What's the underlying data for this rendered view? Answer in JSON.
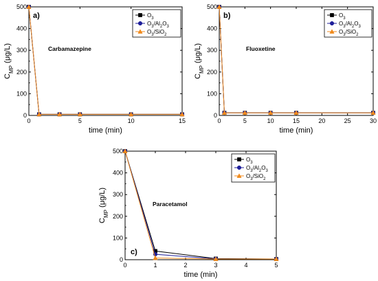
{
  "chart_data": [
    {
      "type": "line",
      "panel_label": "a)",
      "compound": "Carbamazepine",
      "xlabel": "time (min)",
      "ylabel": "C",
      "ylabel_sub": "MP",
      "ylabel_unit": "(μg/L)",
      "xlim": [
        0,
        15
      ],
      "ylim": [
        0,
        500
      ],
      "xticks": [
        0,
        5,
        10,
        15
      ],
      "yticks": [
        0,
        100,
        200,
        300,
        400,
        500
      ],
      "legend_position": "top-right",
      "series": [
        {
          "name": "O3",
          "label": "O",
          "sub": "3",
          "color": "#000000",
          "marker": "square",
          "x": [
            0,
            1,
            3,
            5,
            10,
            15
          ],
          "y": [
            500,
            5,
            5,
            5,
            5,
            5
          ]
        },
        {
          "name": "O3/Al2O3",
          "label": "O",
          "sub": "3/Al2O3",
          "color": "#1f1f9a",
          "marker": "circle",
          "x": [
            0,
            1,
            3,
            5,
            10,
            15
          ],
          "y": [
            500,
            5,
            5,
            5,
            5,
            5
          ]
        },
        {
          "name": "O3/SiO2",
          "label": "O",
          "sub": "3/SiO2",
          "color": "#f08a1c",
          "marker": "triangle",
          "x": [
            0,
            1,
            3,
            5,
            10,
            15
          ],
          "y": [
            500,
            5,
            5,
            5,
            5,
            5
          ]
        }
      ]
    },
    {
      "type": "line",
      "panel_label": "b)",
      "compound": "Fluoxetine",
      "xlabel": "time (min)",
      "ylabel": "C",
      "ylabel_sub": "MP",
      "ylabel_unit": "(μg/L)",
      "xlim": [
        0,
        30
      ],
      "ylim": [
        0,
        500
      ],
      "xticks": [
        0,
        5,
        10,
        15,
        20,
        25,
        30
      ],
      "yticks": [
        0,
        100,
        200,
        300,
        400,
        500
      ],
      "legend_position": "top-right",
      "series": [
        {
          "name": "O3",
          "label": "O",
          "sub": "3",
          "color": "#000000",
          "marker": "square",
          "x": [
            0,
            1,
            5,
            10,
            15,
            30
          ],
          "y": [
            500,
            12,
            12,
            12,
            12,
            12
          ]
        },
        {
          "name": "O3/Al2O3",
          "label": "O",
          "sub": "3/Al2O3",
          "color": "#1f1f9a",
          "marker": "circle",
          "x": [
            0,
            1,
            5,
            10,
            15,
            30
          ],
          "y": [
            500,
            12,
            12,
            12,
            12,
            12
          ]
        },
        {
          "name": "O3/SiO2",
          "label": "O",
          "sub": "3/SiO2",
          "color": "#f08a1c",
          "marker": "triangle",
          "x": [
            0,
            1,
            5,
            10,
            15,
            30
          ],
          "y": [
            500,
            12,
            12,
            12,
            12,
            12
          ]
        }
      ]
    },
    {
      "type": "line",
      "panel_label": "c)",
      "compound": "Paracetamol",
      "xlabel": "time (min)",
      "ylabel": "C",
      "ylabel_sub": "MP",
      "ylabel_unit": "(μg/L)",
      "xlim": [
        0,
        5
      ],
      "ylim": [
        0,
        500
      ],
      "xticks": [
        0,
        1,
        2,
        3,
        4,
        5
      ],
      "yticks": [
        0,
        100,
        200,
        300,
        400,
        500
      ],
      "legend_position": "top-right",
      "series": [
        {
          "name": "O3",
          "label": "O",
          "sub": "3",
          "color": "#000000",
          "marker": "square",
          "x": [
            0,
            1,
            3,
            5
          ],
          "y": [
            500,
            40,
            5,
            3
          ]
        },
        {
          "name": "O3/Al2O3",
          "label": "O",
          "sub": "3/Al2O3",
          "color": "#1f1f9a",
          "marker": "circle",
          "x": [
            0,
            1,
            3,
            5
          ],
          "y": [
            500,
            25,
            4,
            3
          ]
        },
        {
          "name": "O3/SiO2",
          "label": "O",
          "sub": "3/SiO2",
          "color": "#f08a1c",
          "marker": "triangle",
          "x": [
            0,
            1,
            3,
            5
          ],
          "y": [
            500,
            8,
            3,
            3
          ]
        }
      ]
    }
  ]
}
